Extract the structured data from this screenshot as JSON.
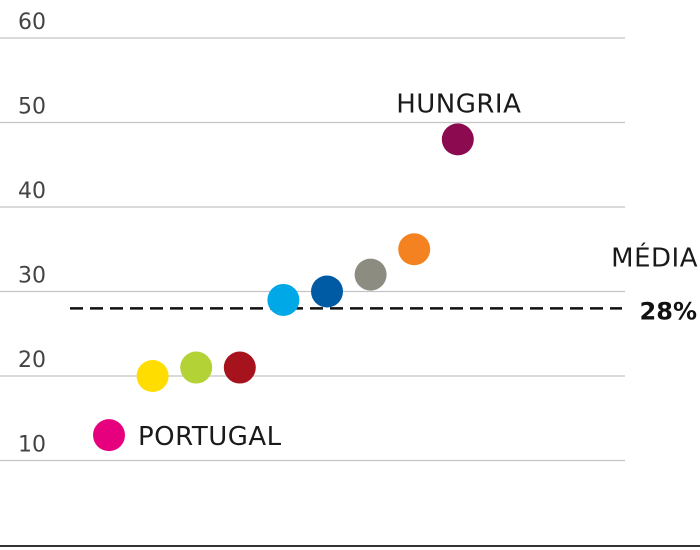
{
  "chart_data": {
    "type": "scatter",
    "title": "",
    "xlabel": "",
    "ylabel": "",
    "ylim": [
      0,
      60
    ],
    "yticks": [
      10,
      20,
      30,
      40,
      50,
      60
    ],
    "grid": true,
    "points": [
      {
        "y": 13,
        "color": "#E6007E",
        "label": "PORTUGAL"
      },
      {
        "y": 20,
        "color": "#FFDD00"
      },
      {
        "y": 21,
        "color": "#B2D235"
      },
      {
        "y": 21,
        "color": "#A6131C"
      },
      {
        "y": 29,
        "color": "#00A8E8"
      },
      {
        "y": 30,
        "color": "#005BA4"
      },
      {
        "y": 32,
        "color": "#8C8C80"
      },
      {
        "y": 35,
        "color": "#F58220"
      },
      {
        "y": 48,
        "color": "#8B0A50",
        "label": "HUNGRIA"
      }
    ],
    "average": {
      "value": 28,
      "label": "MÉDIA",
      "value_label": "28%"
    }
  }
}
